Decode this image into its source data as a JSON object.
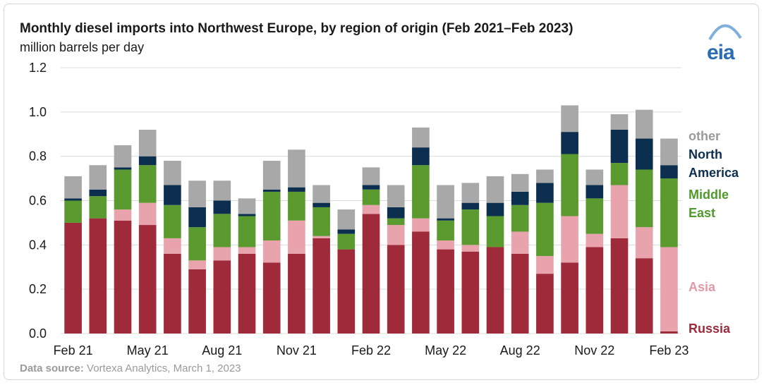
{
  "title": "Monthly diesel imports into Northwest Europe, by region of origin (Feb 2021–Feb 2023)",
  "subtitle": "million barrels per day",
  "source": {
    "label": "Data source:",
    "text": "Vortexa Analytics, March 1, 2023"
  },
  "logo": {
    "text": "eia"
  },
  "colors": {
    "russia": "#9e2a3a",
    "asia": "#e8a3ad",
    "middle_east": "#5a9a2e",
    "north_america": "#0d2f4f",
    "other": "#a8a8a8"
  },
  "legend": {
    "other": "other",
    "north_america_1": "North",
    "north_america_2": "America",
    "middle_east_1": "Middle",
    "middle_east_2": "East",
    "asia": "Asia",
    "russia": "Russia"
  },
  "chart_data": {
    "type": "bar",
    "stacked": true,
    "title": "Monthly diesel imports into Northwest Europe, by region of origin (Feb 2021–Feb 2023)",
    "ylabel": "million barrels per day",
    "ylim": [
      0,
      1.2
    ],
    "yticks": [
      "0.0",
      "0.2",
      "0.4",
      "0.6",
      "0.8",
      "1.0",
      "1.2"
    ],
    "x_tick_labels": [
      "Feb 21",
      "May 21",
      "Aug 21",
      "Nov 21",
      "Feb 22",
      "May 22",
      "Aug 22",
      "Nov 22",
      "Feb 23"
    ],
    "categories": [
      "Feb 21",
      "Mar 21",
      "Apr 21",
      "May 21",
      "Jun 21",
      "Jul 21",
      "Aug 21",
      "Sep 21",
      "Oct 21",
      "Nov 21",
      "Dec 21",
      "Jan 22",
      "Feb 22",
      "Mar 22",
      "Apr 22",
      "May 22",
      "Jun 22",
      "Jul 22",
      "Aug 22",
      "Sep 22",
      "Oct 22",
      "Nov 22",
      "Dec 22",
      "Jan 23",
      "Feb 23"
    ],
    "series": [
      {
        "name": "Russia",
        "key": "russia",
        "values": [
          0.5,
          0.52,
          0.51,
          0.49,
          0.36,
          0.29,
          0.33,
          0.36,
          0.32,
          0.36,
          0.43,
          0.38,
          0.54,
          0.4,
          0.46,
          0.38,
          0.37,
          0.39,
          0.36,
          0.27,
          0.32,
          0.39,
          0.43,
          0.34,
          0.01
        ]
      },
      {
        "name": "Asia",
        "key": "asia",
        "values": [
          0.0,
          0.0,
          0.05,
          0.1,
          0.07,
          0.04,
          0.06,
          0.03,
          0.1,
          0.15,
          0.01,
          0.0,
          0.04,
          0.09,
          0.06,
          0.04,
          0.03,
          0.0,
          0.1,
          0.08,
          0.21,
          0.06,
          0.24,
          0.14,
          0.38
        ]
      },
      {
        "name": "Middle East",
        "key": "middle_east",
        "values": [
          0.1,
          0.1,
          0.18,
          0.17,
          0.15,
          0.15,
          0.15,
          0.14,
          0.22,
          0.13,
          0.13,
          0.07,
          0.07,
          0.03,
          0.24,
          0.09,
          0.16,
          0.14,
          0.12,
          0.24,
          0.28,
          0.16,
          0.1,
          0.26,
          0.31
        ]
      },
      {
        "name": "North America",
        "key": "north_america",
        "values": [
          0.01,
          0.03,
          0.01,
          0.04,
          0.09,
          0.09,
          0.06,
          0.01,
          0.01,
          0.02,
          0.02,
          0.02,
          0.02,
          0.05,
          0.08,
          0.01,
          0.03,
          0.06,
          0.06,
          0.09,
          0.1,
          0.06,
          0.15,
          0.14,
          0.06
        ]
      },
      {
        "name": "other",
        "key": "other",
        "values": [
          0.1,
          0.11,
          0.1,
          0.12,
          0.11,
          0.12,
          0.09,
          0.07,
          0.13,
          0.17,
          0.08,
          0.09,
          0.08,
          0.1,
          0.09,
          0.15,
          0.09,
          0.12,
          0.08,
          0.06,
          0.12,
          0.07,
          0.07,
          0.13,
          0.12
        ]
      }
    ]
  }
}
